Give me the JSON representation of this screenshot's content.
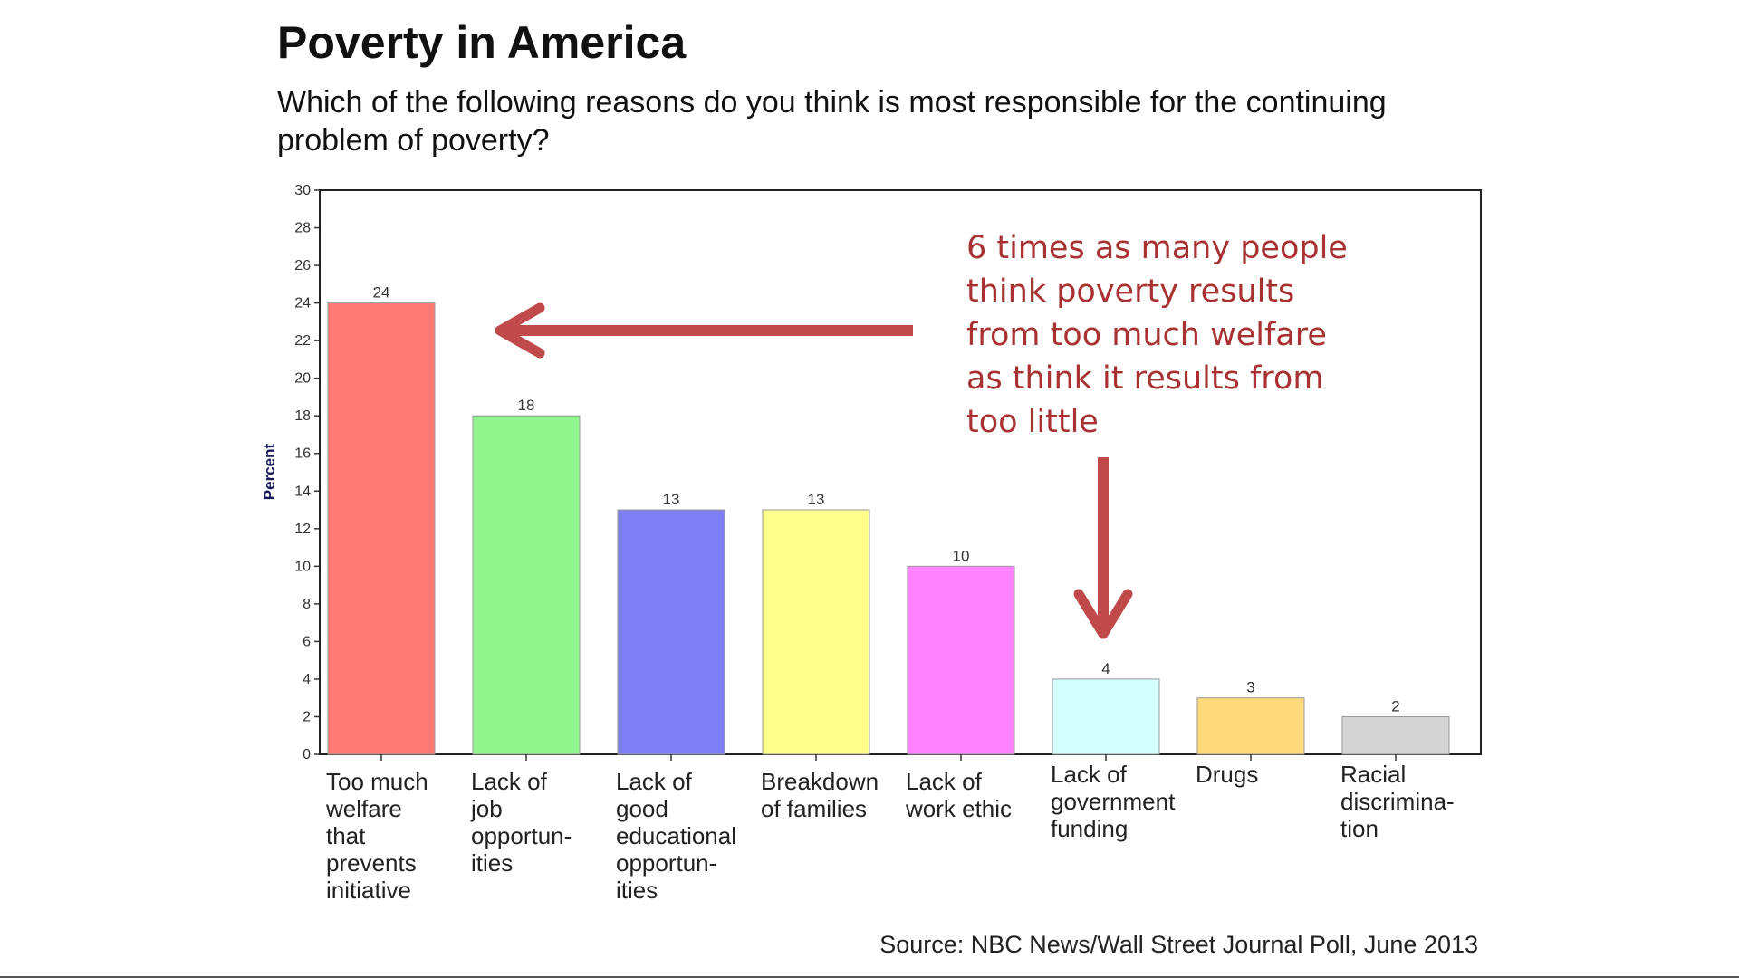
{
  "title": "Poverty in America",
  "subtitle": "Which of the following reasons do you think is most responsible for the continuing problem of poverty?",
  "annotation": "6 times as many people think poverty results from too much welfare as think it results from too little",
  "source": "Source: NBC News/Wall Street Journal Poll, June 2013",
  "colors": {
    "annotation": "#a83232",
    "arrow": "#c04a4a"
  },
  "chart_data": {
    "type": "bar",
    "ylabel": "Percent",
    "xlabel": "",
    "ylim": [
      0,
      30
    ],
    "yticks": [
      0,
      2,
      4,
      6,
      8,
      10,
      12,
      14,
      16,
      18,
      20,
      22,
      24,
      26,
      28,
      30
    ],
    "grid": false,
    "categories": [
      "Too much\nwelfare\nthat\nprevents\ninitiative",
      "Lack of\njob\nopportun-\nities",
      "Lack of\ngood\neducational\nopportun-\nities",
      "Breakdown\nof families",
      "Lack of\nwork ethic",
      "Lack of\ngovernment\nfunding",
      "Drugs",
      "Racial\ndiscrimina-\ntion"
    ],
    "values": [
      24,
      18,
      13,
      13,
      10,
      4,
      3,
      2
    ],
    "bar_colors": [
      "#ff7b73",
      "#8ff58c",
      "#7f7ff5",
      "#ffff8c",
      "#ff82ff",
      "#d4ffff",
      "#ffd97a",
      "#d4d4d4"
    ]
  }
}
